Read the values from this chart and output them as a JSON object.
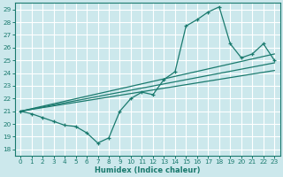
{
  "xlabel": "Humidex (Indice chaleur)",
  "ylabel": "",
  "background_color": "#cce8ec",
  "line_color": "#1a7a6e",
  "xlim": [
    -0.5,
    23.5
  ],
  "ylim": [
    17.5,
    29.5
  ],
  "xticks": [
    0,
    1,
    2,
    3,
    4,
    5,
    6,
    7,
    8,
    9,
    10,
    11,
    12,
    13,
    14,
    15,
    16,
    17,
    18,
    19,
    20,
    21,
    22,
    23
  ],
  "yticks": [
    18,
    19,
    20,
    21,
    22,
    23,
    24,
    25,
    26,
    27,
    28,
    29
  ],
  "grid_color": "#ffffff",
  "series1_x": [
    0,
    1,
    2,
    3,
    4,
    5,
    6,
    7,
    8,
    9,
    10,
    11,
    12,
    13,
    14,
    15,
    16,
    17,
    18,
    19,
    20,
    21,
    22,
    23
  ],
  "series1_y": [
    21.0,
    20.8,
    20.5,
    20.2,
    19.9,
    19.8,
    19.3,
    18.5,
    18.9,
    21.0,
    22.0,
    22.5,
    22.3,
    23.5,
    24.1,
    27.7,
    28.2,
    28.8,
    29.2,
    26.3,
    25.2,
    25.5,
    26.3,
    25.0
  ],
  "line1_x": [
    0,
    23
  ],
  "line1_y": [
    21.0,
    25.5
  ],
  "line2_x": [
    0,
    23
  ],
  "line2_y": [
    21.0,
    24.8
  ],
  "line3_x": [
    0,
    23
  ],
  "line3_y": [
    21.0,
    24.2
  ]
}
